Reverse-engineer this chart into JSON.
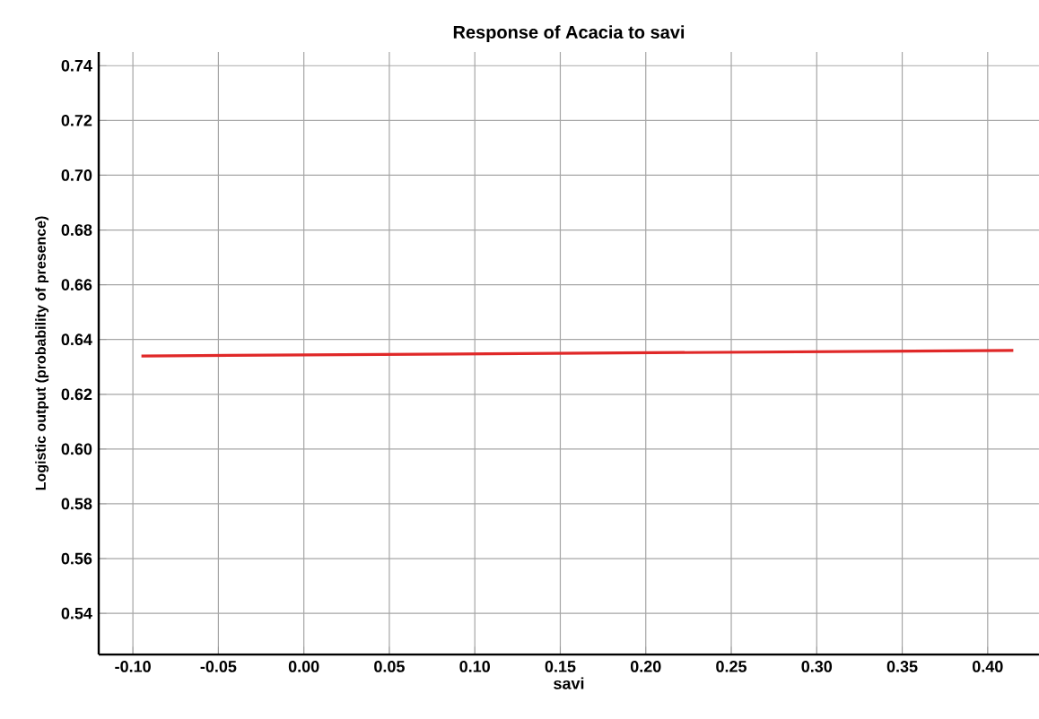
{
  "chart_data": {
    "type": "line",
    "title": "Response of Acacia to savi",
    "xlabel": "savi",
    "ylabel": "Logistic output (probability of presence)",
    "x": [
      -0.095,
      0.415
    ],
    "series": [
      {
        "color": "#e02828",
        "values": [
          0.634,
          0.636
        ]
      }
    ],
    "xlim": [
      -0.12,
      0.43
    ],
    "ylim": [
      0.525,
      0.745
    ],
    "xticks": [
      {
        "value": -0.1,
        "label": "-0.10"
      },
      -0.05,
      {
        "value": 0,
        "label": "0.00"
      },
      0.05,
      {
        "value": 0.1,
        "label": "0.10"
      },
      0.15,
      {
        "value": 0.2,
        "label": "0.20"
      },
      0.25,
      {
        "value": 0.3,
        "label": "0.30"
      },
      0.35,
      {
        "value": 0.4,
        "label": "0.40"
      }
    ],
    "yticks": [
      0.54,
      0.56,
      0.58,
      {
        "value": 0.6,
        "label": "0.60"
      },
      0.62,
      0.64,
      0.66,
      0.68,
      {
        "value": 0.7,
        "label": "0.70"
      },
      0.72,
      0.74
    ],
    "grid": true
  }
}
